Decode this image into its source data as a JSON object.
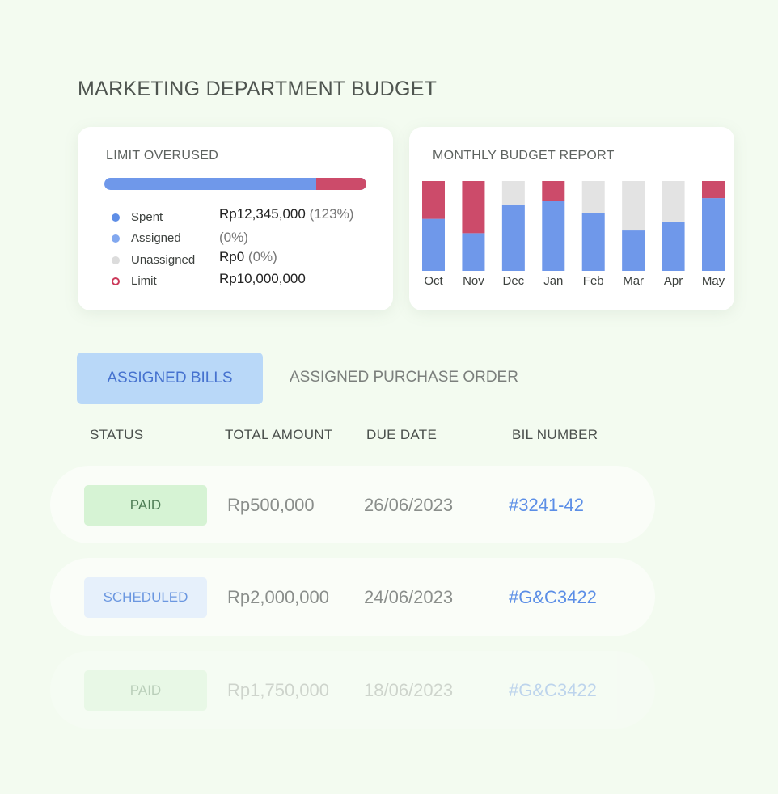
{
  "page_title": "MARKETING DEPARTMENT BUDGET",
  "limit_card": {
    "title": "LIMIT OVERUSED",
    "progress": {
      "spent_fraction": 0.81,
      "overused_fraction": 0.19
    },
    "colors": {
      "spent": "#6f98ea",
      "overused": "#cc4b6a"
    },
    "legend": [
      {
        "label": "Spent",
        "value": "Rp12,345,000",
        "pct": "(123%)",
        "icon": "dot-icon"
      },
      {
        "label": "Assigned",
        "value": "",
        "pct": "(0%)",
        "icon": "dot-icon"
      },
      {
        "label": "Unassigned",
        "value": "Rp0",
        "pct": "(0%)",
        "icon": "dot-icon"
      },
      {
        "label": "Limit",
        "value": "Rp10,000,000",
        "pct": "",
        "icon": "ring-icon"
      }
    ]
  },
  "report_card": {
    "title": "MONTHLY BUDGET REPORT"
  },
  "chart_data": {
    "type": "bar",
    "stacked": true,
    "categories": [
      "Oct",
      "Nov",
      "Dec",
      "Jan",
      "Feb",
      "Mar",
      "Apr",
      "May"
    ],
    "ylim": [
      0,
      1
    ],
    "series": [
      {
        "values": [
          0.58,
          0.42,
          0.74,
          0.78,
          0.64,
          0.45,
          0.55,
          0.81
        ],
        "color": "#6f98ea"
      },
      {
        "values": [
          0.42,
          0.58,
          0,
          0.22,
          0,
          0,
          0,
          0.19
        ],
        "color": "#cc4b6a"
      },
      {
        "values": [
          0,
          0,
          0.26,
          0,
          0.36,
          0.55,
          0.45,
          0
        ],
        "color": "#e3e3e3"
      }
    ]
  },
  "tabs": {
    "active": "ASSIGNED BILLS",
    "inactive": "ASSIGNED PURCHASE ORDER"
  },
  "table": {
    "headers": [
      "STATUS",
      "TOTAL AMOUNT",
      "DUE DATE",
      "BIL NUMBER"
    ],
    "rows": [
      {
        "status": "PAID",
        "amount": "Rp500,000",
        "date": "26/06/2023",
        "bill": "#3241-42"
      },
      {
        "status": "SCHEDULED",
        "amount": "Rp2,000,000",
        "date": "24/06/2023",
        "bill": "#G&C3422"
      },
      {
        "status": "PAID",
        "amount": "Rp1,750,000",
        "date": "18/06/2023",
        "bill": "#G&C3422"
      }
    ]
  }
}
